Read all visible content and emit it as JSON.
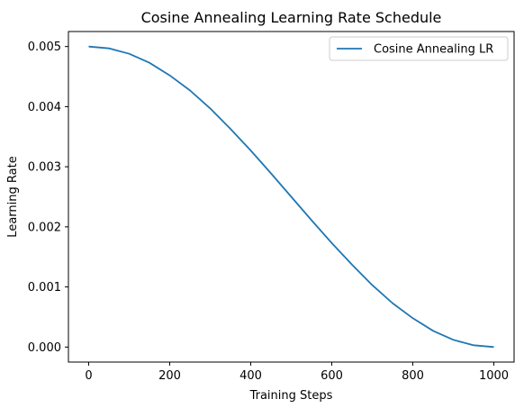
{
  "chart_data": {
    "type": "line",
    "title": "Cosine Annealing Learning Rate Schedule",
    "xlabel": "Training Steps",
    "ylabel": "Learning Rate",
    "xlim": [
      -50,
      1050
    ],
    "ylim": [
      -0.00025,
      0.00525
    ],
    "xticks": [
      0,
      200,
      400,
      600,
      800,
      1000
    ],
    "yticks": [
      0.0,
      0.001,
      0.002,
      0.003,
      0.004,
      0.005
    ],
    "xtick_labels": [
      "0",
      "200",
      "400",
      "600",
      "800",
      "1000"
    ],
    "ytick_labels": [
      "0.000",
      "0.001",
      "0.002",
      "0.003",
      "0.004",
      "0.005"
    ],
    "grid": false,
    "legend_position": "top-right",
    "series": [
      {
        "name": "Cosine Annealing LR",
        "color": "#1f77b4",
        "x": [
          0,
          50,
          100,
          150,
          200,
          250,
          300,
          350,
          400,
          450,
          500,
          550,
          600,
          650,
          700,
          750,
          800,
          850,
          900,
          950,
          1000
        ],
        "y": [
          0.005,
          0.00497,
          0.00488,
          0.00473,
          0.00452,
          0.00427,
          0.00397,
          0.00363,
          0.00327,
          0.00289,
          0.0025,
          0.00211,
          0.00173,
          0.00137,
          0.00103,
          0.00073,
          0.00048,
          0.00027,
          0.00012,
          3e-05,
          0.0
        ]
      }
    ]
  }
}
